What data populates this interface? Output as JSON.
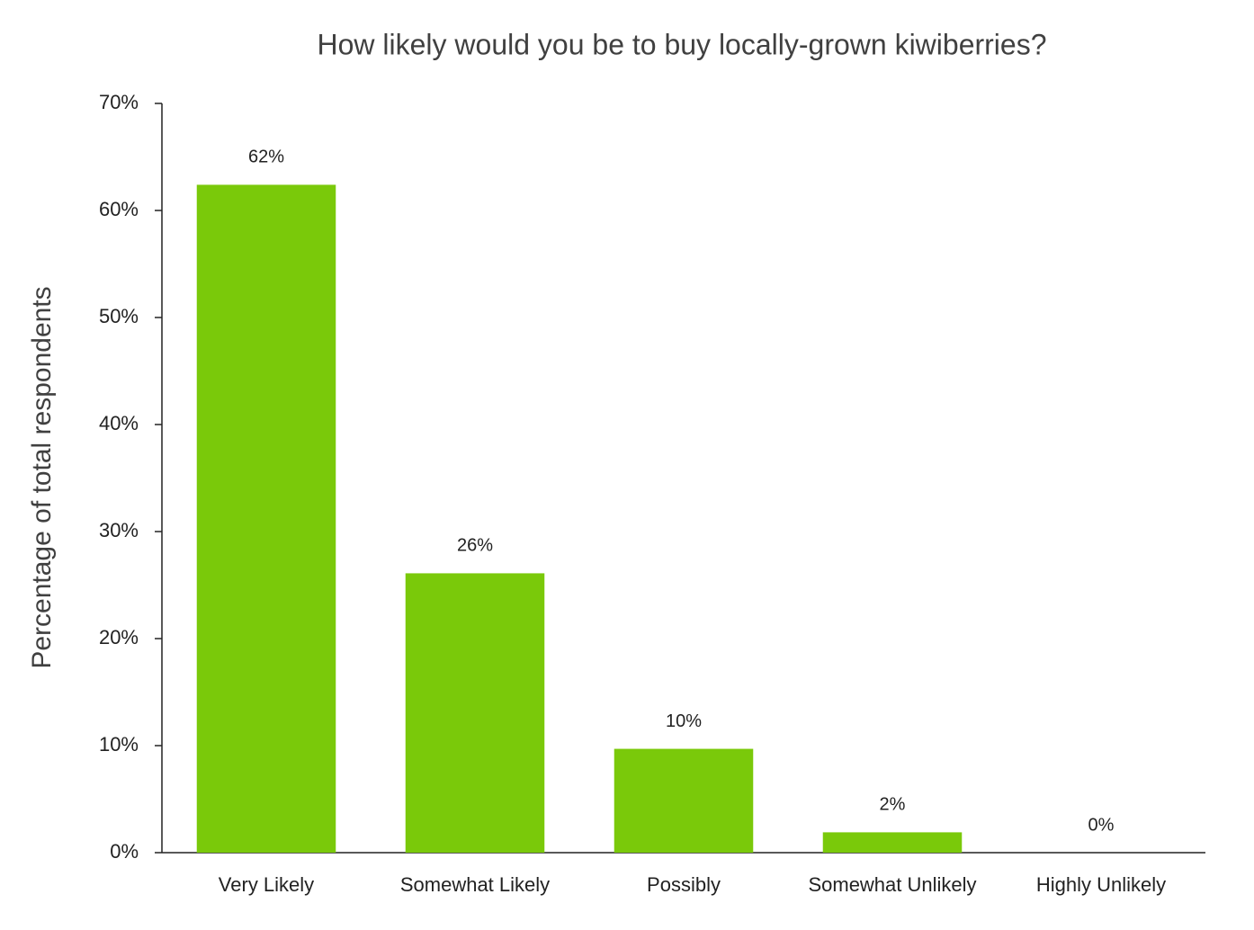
{
  "chart_data": {
    "type": "bar",
    "title": "How likely would you be to buy locally-grown kiwiberries?",
    "y_label": "Percentage of total respondents",
    "categories": [
      "Very Likely",
      "Somewhat Likely",
      "Possibly",
      "Somewhat Unlikely",
      "Highly Unlikely"
    ],
    "values": [
      62.4,
      26.1,
      9.7,
      1.9,
      0
    ],
    "value_labels": [
      "62%",
      "26%",
      "10%",
      "2%",
      "0%"
    ],
    "color": "#7ac90a",
    "ylim": [
      0,
      70
    ],
    "yticks": [
      {
        "value": 0,
        "label": "0%"
      },
      {
        "value": 10,
        "label": "10%"
      },
      {
        "value": 20,
        "label": "20%"
      },
      {
        "value": 30,
        "label": "30%"
      },
      {
        "value": 40,
        "label": "40%"
      },
      {
        "value": 50,
        "label": "50%"
      },
      {
        "value": 60,
        "label": "60%"
      },
      {
        "value": 70,
        "label": "70%"
      }
    ],
    "grid": false
  }
}
